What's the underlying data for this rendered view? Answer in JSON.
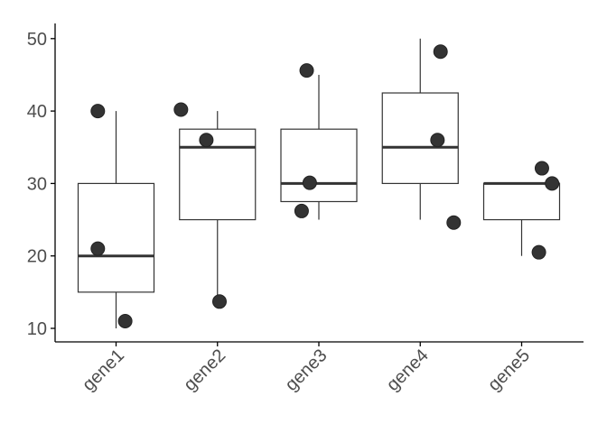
{
  "chart_data": {
    "type": "box",
    "title": "",
    "xlabel": "",
    "ylabel": "",
    "ylim": [
      8,
      52
    ],
    "yticks": [
      10,
      20,
      30,
      40,
      50
    ],
    "grid": false,
    "legend": "none",
    "colors": {
      "box_fill": "#ffffff",
      "box_stroke": "#333333",
      "point": "#333333",
      "axis": "#000000",
      "tick_text": "#4d4d4d"
    },
    "categories": [
      "gene1",
      "gene2",
      "gene3",
      "gene4",
      "gene5"
    ],
    "boxes": [
      {
        "category": "gene1",
        "min": 10,
        "q1": 15,
        "median": 20,
        "q3": 30,
        "max": 40
      },
      {
        "category": "gene2",
        "min": 14,
        "q1": 25,
        "median": 35,
        "q3": 37.5,
        "max": 40
      },
      {
        "category": "gene3",
        "min": 25,
        "q1": 27.5,
        "median": 30,
        "q3": 37.5,
        "max": 45
      },
      {
        "category": "gene4",
        "min": 25,
        "q1": 30,
        "median": 35,
        "q3": 42.5,
        "max": 50
      },
      {
        "category": "gene5",
        "min": 20,
        "q1": 25,
        "median": 30,
        "q3": 30,
        "max": 30
      }
    ],
    "points": [
      {
        "category": "gene1",
        "jitter": -0.18,
        "y": 40
      },
      {
        "category": "gene1",
        "jitter": -0.18,
        "y": 21
      },
      {
        "category": "gene1",
        "jitter": 0.09,
        "y": 11
      },
      {
        "category": "gene2",
        "jitter": -0.36,
        "y": 40.2
      },
      {
        "category": "gene2",
        "jitter": -0.11,
        "y": 36
      },
      {
        "category": "gene2",
        "jitter": 0.02,
        "y": 13.7
      },
      {
        "category": "gene3",
        "jitter": -0.17,
        "y": 26.2
      },
      {
        "category": "gene3",
        "jitter": -0.09,
        "y": 30.1
      },
      {
        "category": "gene3",
        "jitter": -0.12,
        "y": 45.6
      },
      {
        "category": "gene4",
        "jitter": 0.2,
        "y": 48.2
      },
      {
        "category": "gene4",
        "jitter": 0.17,
        "y": 36
      },
      {
        "category": "gene4",
        "jitter": 0.33,
        "y": 24.6
      },
      {
        "category": "gene5",
        "jitter": 0.2,
        "y": 32.1
      },
      {
        "category": "gene5",
        "jitter": 0.3,
        "y": 30
      },
      {
        "category": "gene5",
        "jitter": 0.17,
        "y": 20.5
      }
    ]
  }
}
